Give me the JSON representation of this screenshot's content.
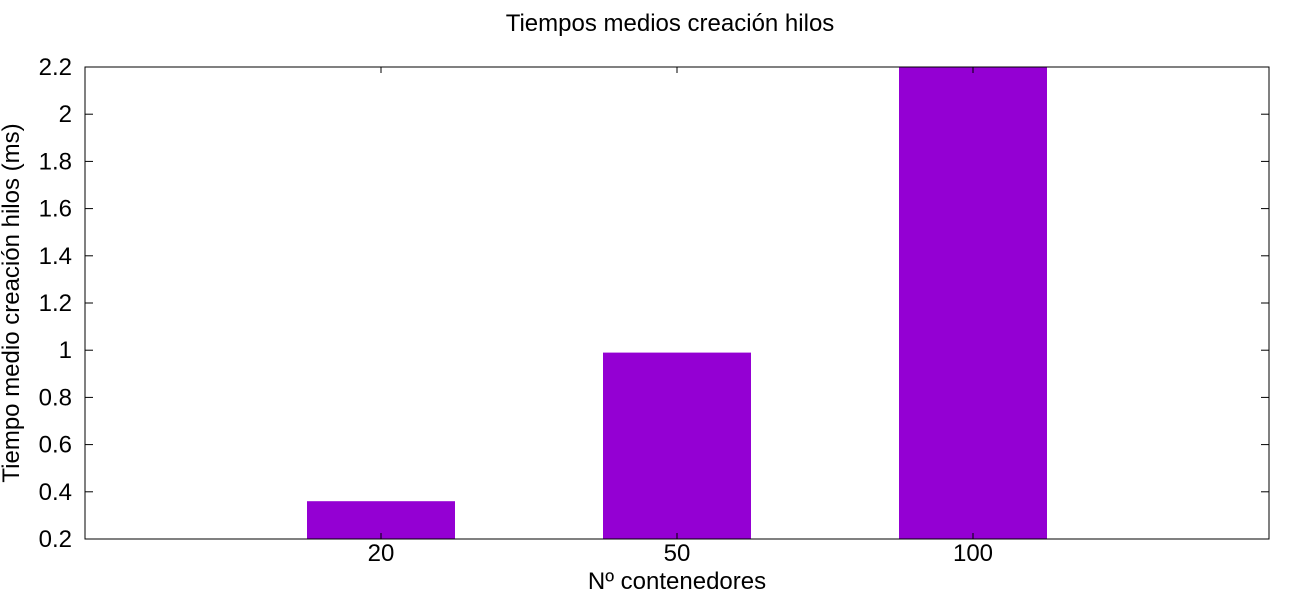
{
  "chart_data": {
    "type": "bar",
    "title": "Tiempos medios creación hilos",
    "xlabel": "Nº contenedores",
    "ylabel": "Tiempo medio creación hilos (ms)",
    "categories": [
      "20",
      "50",
      "100"
    ],
    "values": [
      0.36,
      0.99,
      2.2
    ],
    "ylim": [
      0.2,
      2.2
    ],
    "yticks": [
      "0.2",
      "0.4",
      "0.6",
      "0.8",
      "1",
      "1.2",
      "1.4",
      "1.6",
      "1.8",
      "2",
      "2.2"
    ],
    "bar_color": "#9400d3",
    "grid": false,
    "legend": "none"
  }
}
